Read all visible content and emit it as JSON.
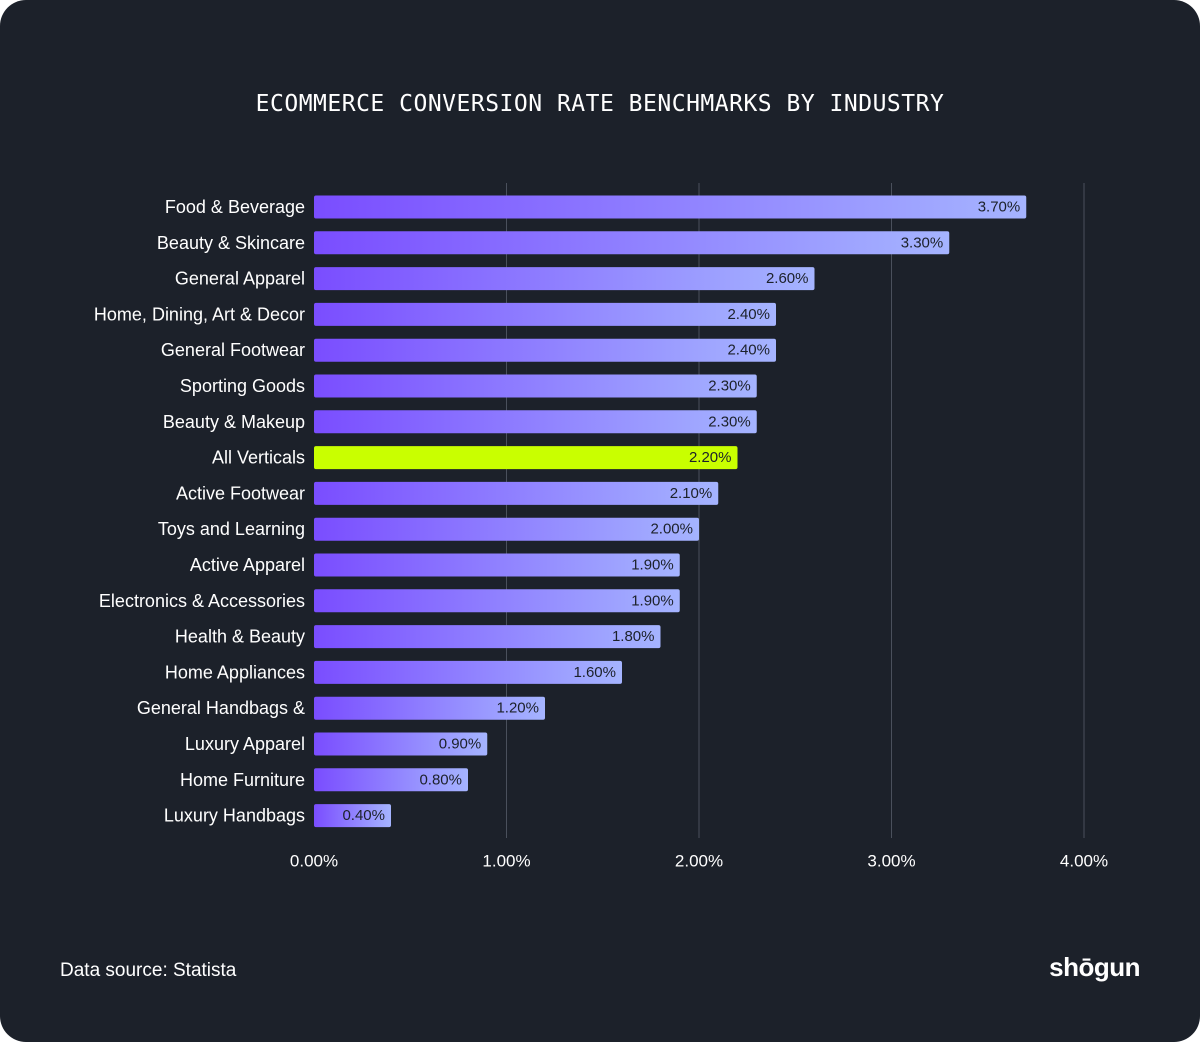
{
  "colors": {
    "background": "#1c212a",
    "bar_start": "#7a4dff",
    "bar_end": "#a5b4ff",
    "highlight": "#c9ff00",
    "grid": "#4a505c",
    "text": "#ffffff",
    "label_text": "#1c212a"
  },
  "chart_data": {
    "type": "bar",
    "orientation": "horizontal",
    "title": "ECOMMERCE CONVERSION RATE BENCHMARKS BY INDUSTRY",
    "categories": [
      "Food & Beverage",
      "Beauty & Skincare",
      "General Apparel",
      "Home, Dining, Art & Decor",
      "General Footwear",
      "Sporting Goods",
      "Beauty & Makeup",
      "All Verticals",
      "Active Footwear",
      "Toys and Learning",
      "Active Apparel",
      "Electronics & Accessories",
      "Health & Beauty",
      "Home Appliances",
      "General Handbags &",
      "Luxury Apparel",
      "Home Furniture",
      "Luxury Handbags"
    ],
    "values": [
      3.7,
      3.3,
      2.6,
      2.4,
      2.4,
      2.3,
      2.3,
      2.2,
      2.1,
      2.0,
      1.9,
      1.9,
      1.8,
      1.6,
      1.2,
      0.9,
      0.8,
      0.4
    ],
    "value_labels": [
      "3.70%",
      "3.30%",
      "2.60%",
      "2.40%",
      "2.40%",
      "2.30%",
      "2.30%",
      "2.20%",
      "2.10%",
      "2.00%",
      "1.90%",
      "1.90%",
      "1.80%",
      "1.60%",
      "1.20%",
      "0.90%",
      "0.80%",
      "0.40%"
    ],
    "highlight_category": "All Verticals",
    "xlim": [
      0,
      4
    ],
    "xticks": [
      0,
      1,
      2,
      3,
      4
    ],
    "xtick_labels": [
      "0.00%",
      "1.00%",
      "2.00%",
      "3.00%",
      "4.00%"
    ],
    "xlabel": "",
    "ylabel": "",
    "grid": true
  },
  "footer": {
    "source": "Data source: Statista",
    "brand": "shōgun"
  }
}
